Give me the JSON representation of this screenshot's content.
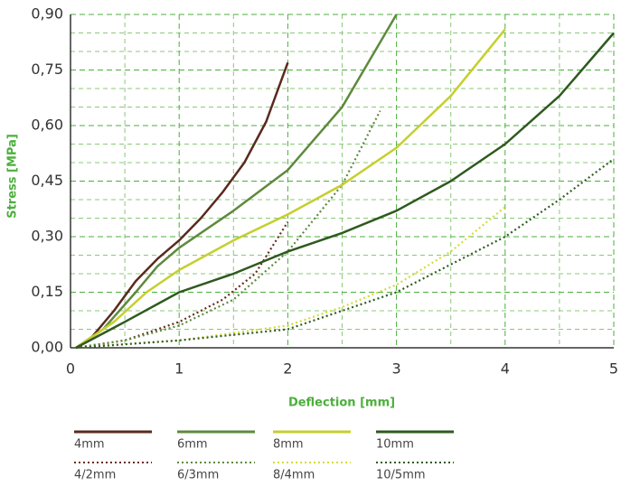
{
  "chart_data": {
    "type": "line",
    "xlabel": "Deflection [mm]",
    "ylabel": "Stress [MPa]",
    "xlim": [
      0,
      5
    ],
    "ylim": [
      0,
      0.9
    ],
    "xticks": [
      0,
      1,
      2,
      3,
      4,
      5
    ],
    "yticks": [
      {
        "value": 0,
        "label": "0,00"
      },
      {
        "value": 0.15,
        "label": "0,15"
      },
      {
        "value": 0.3,
        "label": "0,30"
      },
      {
        "value": 0.45,
        "label": "0,45"
      },
      {
        "value": 0.6,
        "label": "0,60"
      },
      {
        "value": 0.75,
        "label": "0,75"
      },
      {
        "value": 0.9,
        "label": "0,90"
      }
    ],
    "xminorticks": [
      0.5,
      1.5,
      2.5,
      3.5,
      4.5
    ],
    "yminorticks": [
      0.05,
      0.1,
      0.2,
      0.25,
      0.35,
      0.4,
      0.5,
      0.55,
      0.65,
      0.7,
      0.8,
      0.85
    ],
    "grid": true,
    "series": [
      {
        "name": "4mm",
        "color": "#5a2a1e",
        "dashed": false,
        "x": [
          0.05,
          0.2,
          0.4,
          0.6,
          0.8,
          1.0,
          1.2,
          1.4,
          1.6,
          1.8,
          2.0
        ],
        "values": [
          0,
          0.03,
          0.1,
          0.18,
          0.24,
          0.29,
          0.35,
          0.42,
          0.5,
          0.61,
          0.77
        ]
      },
      {
        "name": "4/2mm",
        "color": "#6a2a1e",
        "dashed": true,
        "x": [
          0.05,
          0.5,
          1.0,
          1.4,
          1.7,
          2.0
        ],
        "values": [
          0,
          0.02,
          0.07,
          0.13,
          0.2,
          0.34
        ]
      },
      {
        "name": "6mm",
        "color": "#5e8a3c",
        "dashed": false,
        "x": [
          0.05,
          0.3,
          0.6,
          0.8,
          1.0,
          1.5,
          2.0,
          2.5,
          3.0
        ],
        "values": [
          0,
          0.05,
          0.15,
          0.22,
          0.27,
          0.37,
          0.48,
          0.65,
          0.9
        ]
      },
      {
        "name": "6/3mm",
        "color": "#5e8a3c",
        "dashed": true,
        "x": [
          0.05,
          0.5,
          1.0,
          1.5,
          2.0,
          2.5,
          2.85
        ],
        "values": [
          0,
          0.02,
          0.06,
          0.13,
          0.26,
          0.44,
          0.64
        ]
      },
      {
        "name": "8mm",
        "color": "#c5cf2e",
        "dashed": false,
        "x": [
          0.05,
          0.4,
          0.7,
          1.0,
          1.5,
          2.0,
          2.5,
          3.0,
          3.5,
          4.0
        ],
        "values": [
          0,
          0.07,
          0.15,
          0.21,
          0.29,
          0.36,
          0.44,
          0.54,
          0.68,
          0.86
        ]
      },
      {
        "name": "8/4mm",
        "color": "#d4db3a",
        "dashed": true,
        "x": [
          0.05,
          1.0,
          2.0,
          2.5,
          3.0,
          3.5,
          4.0
        ],
        "values": [
          0,
          0.02,
          0.06,
          0.11,
          0.17,
          0.26,
          0.38
        ]
      },
      {
        "name": "10mm",
        "color": "#2e5a1f",
        "dashed": false,
        "x": [
          0.05,
          0.5,
          1.0,
          1.5,
          2.0,
          2.5,
          3.0,
          3.5,
          4.0,
          4.5,
          5.0
        ],
        "values": [
          0,
          0.07,
          0.15,
          0.2,
          0.26,
          0.31,
          0.37,
          0.45,
          0.55,
          0.68,
          0.85
        ]
      },
      {
        "name": "10/5mm",
        "color": "#2e5a1f",
        "dashed": true,
        "x": [
          0.05,
          1.0,
          2.0,
          3.0,
          4.0,
          4.5,
          5.0
        ],
        "values": [
          0,
          0.02,
          0.05,
          0.15,
          0.3,
          0.4,
          0.51
        ]
      }
    ]
  }
}
